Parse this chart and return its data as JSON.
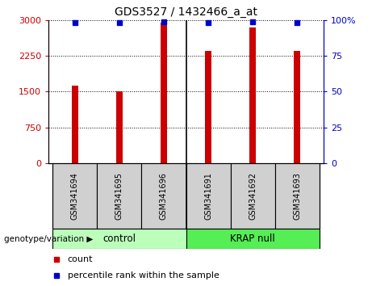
{
  "title": "GDS3527 / 1432466_a_at",
  "categories": [
    "GSM341694",
    "GSM341695",
    "GSM341696",
    "GSM341691",
    "GSM341692",
    "GSM341693"
  ],
  "bar_values": [
    1620,
    1510,
    2940,
    2350,
    2850,
    2350
  ],
  "percentile_values": [
    98,
    98,
    99,
    98,
    99,
    98
  ],
  "bar_color": "#cc0000",
  "percentile_color": "#0000cc",
  "ylim_left": [
    0,
    3000
  ],
  "ylim_right": [
    0,
    100
  ],
  "yticks_left": [
    0,
    750,
    1500,
    2250,
    3000
  ],
  "yticks_right": [
    0,
    25,
    50,
    75,
    100
  ],
  "ytick_labels_left": [
    "0",
    "750",
    "1500",
    "2250",
    "3000"
  ],
  "ytick_labels_right": [
    "0",
    "25",
    "50",
    "75",
    "100%"
  ],
  "left_axis_color": "#cc0000",
  "right_axis_color": "#0000cc",
  "grid_color": "#000000",
  "background_color": "#ffffff",
  "group1_label": "control",
  "group2_label": "KRAP null",
  "group1_color": "#bbffbb",
  "group2_color": "#55ee55",
  "group_label_prefix": "genotype/variation",
  "legend_count_label": "count",
  "legend_percentile_label": "percentile rank within the sample",
  "bar_width": 0.15,
  "separator_after": 2
}
